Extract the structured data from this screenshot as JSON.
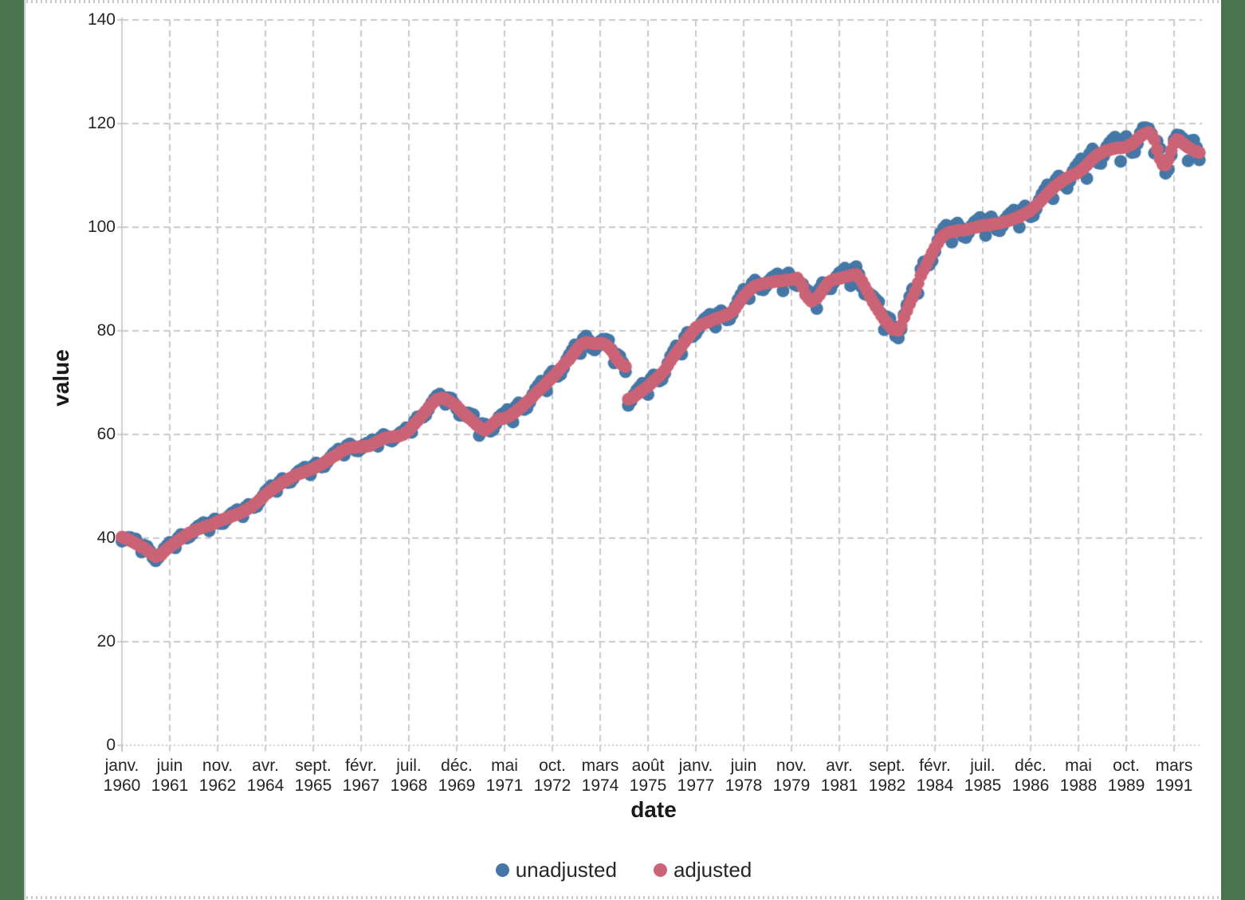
{
  "page": {
    "background": "#FFFFFF",
    "side_bar_color": "#4A7350",
    "grid_color": "#C9C9C9",
    "axis_color": "#BFBFBF",
    "text_color": "#262626"
  },
  "chart": {
    "y_axis": {
      "title": "value",
      "tick_labels": [
        "0",
        "20",
        "40",
        "60",
        "80",
        "100",
        "120",
        "140"
      ]
    },
    "x_axis": {
      "title": "date",
      "ticks": [
        {
          "m": 0,
          "month": "janv.",
          "year": "1960"
        },
        {
          "m": 17,
          "month": "juin",
          "year": "1961"
        },
        {
          "m": 34,
          "month": "nov.",
          "year": "1962"
        },
        {
          "m": 51,
          "month": "avr.",
          "year": "1964"
        },
        {
          "m": 68,
          "month": "sept.",
          "year": "1965"
        },
        {
          "m": 85,
          "month": "févr.",
          "year": "1967"
        },
        {
          "m": 102,
          "month": "juil.",
          "year": "1968"
        },
        {
          "m": 119,
          "month": "déc.",
          "year": "1969"
        },
        {
          "m": 136,
          "month": "mai",
          "year": "1971"
        },
        {
          "m": 153,
          "month": "oct.",
          "year": "1972"
        },
        {
          "m": 170,
          "month": "mars",
          "year": "1974"
        },
        {
          "m": 187,
          "month": "août",
          "year": "1975"
        },
        {
          "m": 204,
          "month": "janv.",
          "year": "1977"
        },
        {
          "m": 221,
          "month": "juin",
          "year": "1978"
        },
        {
          "m": 238,
          "month": "nov.",
          "year": "1979"
        },
        {
          "m": 255,
          "month": "avr.",
          "year": "1981"
        },
        {
          "m": 272,
          "month": "sept.",
          "year": "1982"
        },
        {
          "m": 289,
          "month": "févr.",
          "year": "1984"
        },
        {
          "m": 306,
          "month": "juil.",
          "year": "1985"
        },
        {
          "m": 323,
          "month": "déc.",
          "year": "1986"
        },
        {
          "m": 340,
          "month": "mai",
          "year": "1988"
        },
        {
          "m": 357,
          "month": "oct.",
          "year": "1989"
        },
        {
          "m": 374,
          "month": "mars",
          "year": "1991"
        }
      ]
    },
    "legend": [
      {
        "label": "unadjusted",
        "color": "#4477A6"
      },
      {
        "label": "adjusted",
        "color": "#CB6376"
      }
    ]
  },
  "chart_data": {
    "type": "scatter",
    "title": "",
    "xlabel": "date",
    "ylabel": "value",
    "x_unit": "month",
    "x_start": "janv. 1960",
    "x_end": "déc. 1991",
    "frequency": "monthly",
    "points_per_series": 384,
    "ylim": [
      0,
      140
    ],
    "y_tick_step": 20,
    "x_tick_interval_months": 17,
    "grid": true,
    "grid_style": "dashed",
    "legend_position": "bottom",
    "marker_size_px": 16,
    "series": [
      {
        "name": "unadjusted",
        "color": "#4477A6",
        "values": [
          39.4,
          39.6,
          40.1,
          40.1,
          39.9,
          39.8,
          38.8,
          37.3,
          38.6,
          38.4,
          37.5,
          36.2,
          35.6,
          36.2,
          37.1,
          38.0,
          38.6,
          39.2,
          38.9,
          38.1,
          40.1,
          40.7,
          40.6,
          40.0,
          40.2,
          40.8,
          41.8,
          42.3,
          42.6,
          43.0,
          42.5,
          41.4,
          43.2,
          43.7,
          43.5,
          42.8,
          42.8,
          43.4,
          44.3,
          44.8,
          45.1,
          45.5,
          45.0,
          44.1,
          46.0,
          46.5,
          46.3,
          45.9,
          46.1,
          47.0,
          48.1,
          49.0,
          49.5,
          50.1,
          49.8,
          49.0,
          50.9,
          51.5,
          51.3,
          50.7,
          50.8,
          51.5,
          52.5,
          53.0,
          53.3,
          53.7,
          53.2,
          52.2,
          54.0,
          54.5,
          54.3,
          53.7,
          53.8,
          54.6,
          55.6,
          56.3,
          56.7,
          57.2,
          56.9,
          56.0,
          57.9,
          58.2,
          57.8,
          56.9,
          56.8,
          57.2,
          58.0,
          58.3,
          58.5,
          59.0,
          58.6,
          57.7,
          59.5,
          60.0,
          59.7,
          58.9,
          58.7,
          59.2,
          59.9,
          60.4,
          60.7,
          61.3,
          61.0,
          60.4,
          62.6,
          63.4,
          63.5,
          63.3,
          63.7,
          64.8,
          66.1,
          66.9,
          67.5,
          67.8,
          67.2,
          65.8,
          67.1,
          67.0,
          66.1,
          64.9,
          63.7,
          63.7,
          64.2,
          64.2,
          64.0,
          63.8,
          62.1,
          59.8,
          62.1,
          62.0,
          61.7,
          60.6,
          60.9,
          62.0,
          63.4,
          63.9,
          64.2,
          64.8,
          63.8,
          62.4,
          65.4,
          66.1,
          65.8,
          64.8,
          65.1,
          66.2,
          67.7,
          68.8,
          69.5,
          70.3,
          69.6,
          68.4,
          71.5,
          72.2,
          72.1,
          71.2,
          71.6,
          72.8,
          74.4,
          75.4,
          76.3,
          77.3,
          76.8,
          75.6,
          78.5,
          79.0,
          78.2,
          76.6,
          76.3,
          76.9,
          78.0,
          78.4,
          78.4,
          78.2,
          76.4,
          73.8,
          75.5,
          75.1,
          73.9,
          72.1,
          65.6,
          66.4,
          67.7,
          68.6,
          69.2,
          69.9,
          69.1,
          67.7,
          70.8,
          71.5,
          71.3,
          70.3,
          70.6,
          71.8,
          73.7,
          75.1,
          76.1,
          77.1,
          76.6,
          75.5,
          78.8,
          79.7,
          79.7,
          78.9,
          79.4,
          80.3,
          81.6,
          82.3,
          82.7,
          83.2,
          82.3,
          80.7,
          83.5,
          83.9,
          83.4,
          82.1,
          82.2,
          83.2,
          84.7,
          86.0,
          87.0,
          88.0,
          87.4,
          86.2,
          89.2,
          89.8,
          89.3,
          88.0,
          87.9,
          88.6,
          89.7,
          90.3,
          90.6,
          91.0,
          89.8,
          87.7,
          90.8,
          91.2,
          90.4,
          89.0,
          88.7,
          88.7,
          89.0,
          88.1,
          87.7,
          87.4,
          86.3,
          84.3,
          88.2,
          89.3,
          89.1,
          88.1,
          88.1,
          89.2,
          90.5,
          91.2,
          91.6,
          92.1,
          90.8,
          88.7,
          92.0,
          92.4,
          90.9,
          88.4,
          87.1,
          86.9,
          87.1,
          86.7,
          86.1,
          85.6,
          83.3,
          80.2,
          82.7,
          82.4,
          80.9,
          79.0,
          78.6,
          80.3,
          83.1,
          85.0,
          86.6,
          88.1,
          87.9,
          87.2,
          91.9,
          93.3,
          93.4,
          92.7,
          93.5,
          95.3,
          97.4,
          98.9,
          99.8,
          100.4,
          99.3,
          97.1,
          100.4,
          100.8,
          100.0,
          98.2,
          98.0,
          98.9,
          100.3,
          101.0,
          101.4,
          101.9,
          100.6,
          98.4,
          101.6,
          102.0,
          101.2,
          99.5,
          99.3,
          100.2,
          101.6,
          102.3,
          102.8,
          103.3,
          102.1,
          100.0,
          103.5,
          104.1,
          103.5,
          102.0,
          102.2,
          103.5,
          105.2,
          106.4,
          107.3,
          108.2,
          107.3,
          105.5,
          109.2,
          109.9,
          109.4,
          108.0,
          107.5,
          108.9,
          110.8,
          111.7,
          112.4,
          113.2,
          111.9,
          109.4,
          114.2,
          115.1,
          114.4,
          112.4,
          112.3,
          113.7,
          115.5,
          116.3,
          116.9,
          117.4,
          115.7,
          112.7,
          117.0,
          117.5,
          116.6,
          114.4,
          114.5,
          116.1,
          118.2,
          119.2,
          119.2,
          119.0,
          118.0,
          114.3,
          116.6,
          115.2,
          112.9,
          110.4,
          111.1,
          113.9,
          116.9,
          117.8,
          117.7,
          117.2,
          116.2,
          112.8,
          116.7,
          116.8,
          115.4,
          113.0
        ]
      },
      {
        "name": "adjusted",
        "color": "#CB6376",
        "values": [
          40.2,
          40.0,
          39.8,
          39.5,
          39.2,
          38.9,
          38.6,
          38.3,
          38.0,
          37.6,
          37.2,
          36.8,
          36.4,
          36.6,
          36.8,
          37.4,
          37.9,
          38.3,
          38.7,
          39.1,
          39.5,
          39.9,
          40.3,
          40.6,
          41.0,
          41.2,
          41.5,
          41.7,
          41.9,
          42.1,
          42.3,
          42.4,
          42.6,
          42.9,
          43.2,
          43.4,
          43.6,
          43.8,
          44.0,
          44.2,
          44.4,
          44.6,
          44.8,
          45.1,
          45.4,
          45.7,
          46.0,
          46.5,
          46.9,
          47.4,
          47.8,
          48.4,
          48.8,
          49.2,
          49.6,
          50.0,
          50.3,
          50.7,
          51.0,
          51.3,
          51.6,
          51.9,
          52.2,
          52.4,
          52.6,
          52.8,
          53.0,
          53.2,
          53.4,
          53.7,
          54.0,
          54.3,
          54.6,
          55.0,
          55.3,
          55.7,
          56.0,
          56.3,
          56.7,
          57.0,
          57.3,
          57.4,
          57.5,
          57.5,
          57.6,
          57.6,
          57.7,
          57.7,
          57.8,
          58.1,
          58.4,
          58.7,
          58.9,
          59.2,
          59.4,
          59.5,
          59.5,
          59.6,
          59.6,
          59.8,
          60.0,
          60.4,
          60.8,
          61.4,
          62.0,
          62.6,
          63.2,
          63.9,
          64.5,
          65.2,
          65.8,
          66.3,
          66.8,
          66.9,
          67.0,
          66.8,
          66.5,
          66.2,
          65.8,
          65.5,
          64.9,
          64.3,
          63.8,
          63.3,
          62.9,
          62.4,
          61.9,
          61.4,
          61.1,
          60.8,
          61.2,
          61.6,
          62.1,
          62.6,
          63.0,
          63.0,
          63.1,
          63.4,
          63.6,
          64.0,
          64.4,
          64.9,
          65.3,
          65.8,
          66.3,
          66.8,
          67.3,
          67.9,
          68.4,
          68.9,
          69.4,
          70.0,
          70.5,
          71.0,
          71.6,
          72.2,
          72.8,
          73.4,
          74.0,
          74.5,
          75.2,
          75.9,
          76.6,
          77.2,
          77.5,
          77.8,
          77.7,
          77.6,
          77.5,
          77.5,
          77.6,
          77.5,
          77.3,
          76.8,
          76.2,
          75.4,
          74.5,
          73.9,
          73.4,
          73.1,
          66.8,
          67.0,
          67.3,
          67.7,
          68.1,
          68.5,
          68.9,
          69.3,
          69.8,
          70.3,
          70.8,
          71.3,
          71.8,
          72.4,
          73.3,
          74.2,
          75.0,
          75.7,
          76.4,
          77.1,
          77.8,
          78.5,
          79.2,
          79.9,
          80.6,
          80.9,
          81.2,
          81.4,
          81.6,
          81.8,
          82.1,
          82.3,
          82.5,
          82.7,
          82.9,
          83.1,
          83.4,
          83.8,
          84.3,
          85.1,
          85.9,
          86.6,
          87.2,
          87.8,
          88.2,
          88.6,
          88.8,
          89.0,
          89.1,
          89.2,
          89.3,
          89.4,
          89.5,
          89.6,
          89.6,
          89.7,
          89.8,
          89.8,
          89.9,
          90.0,
          90.2,
          89.4,
          88.5,
          87.0,
          86.3,
          85.7,
          86.0,
          86.3,
          87.0,
          87.8,
          88.5,
          89.3,
          89.6,
          89.9,
          90.0,
          90.1,
          90.2,
          90.4,
          90.5,
          90.7,
          90.8,
          90.9,
          90.3,
          89.6,
          88.6,
          87.6,
          86.6,
          85.6,
          84.7,
          83.9,
          83.0,
          82.2,
          81.5,
          80.9,
          80.3,
          80.2,
          80.1,
          81.0,
          82.6,
          83.9,
          85.2,
          86.4,
          87.6,
          89.2,
          90.7,
          91.8,
          92.8,
          93.9,
          95.0,
          96.0,
          96.9,
          97.8,
          98.4,
          98.7,
          99.0,
          99.1,
          99.2,
          99.3,
          99.4,
          99.4,
          99.5,
          99.6,
          99.8,
          99.9,
          100.0,
          100.2,
          100.3,
          100.4,
          100.4,
          100.5,
          100.6,
          100.7,
          100.8,
          100.9,
          101.1,
          101.2,
          101.4,
          101.6,
          101.8,
          102.0,
          102.3,
          102.6,
          102.9,
          103.2,
          103.7,
          104.2,
          104.7,
          105.3,
          105.9,
          106.5,
          107.0,
          107.5,
          108.0,
          108.4,
          108.8,
          109.2,
          109.5,
          109.8,
          110.1,
          110.3,
          110.6,
          111.0,
          111.5,
          112.0,
          112.6,
          113.1,
          113.6,
          114.0,
          114.3,
          114.6,
          114.8,
          114.9,
          115.1,
          115.2,
          115.3,
          115.3,
          115.4,
          115.5,
          115.8,
          116.0,
          116.5,
          117.0,
          117.5,
          117.9,
          118.1,
          118.3,
          117.8,
          116.9,
          115.0,
          113.2,
          112.1,
          112.0,
          113.1,
          114.8,
          116.2,
          116.9,
          116.7,
          116.2,
          115.8,
          115.4,
          115.1,
          114.8,
          114.6,
          114.4
        ]
      }
    ]
  }
}
